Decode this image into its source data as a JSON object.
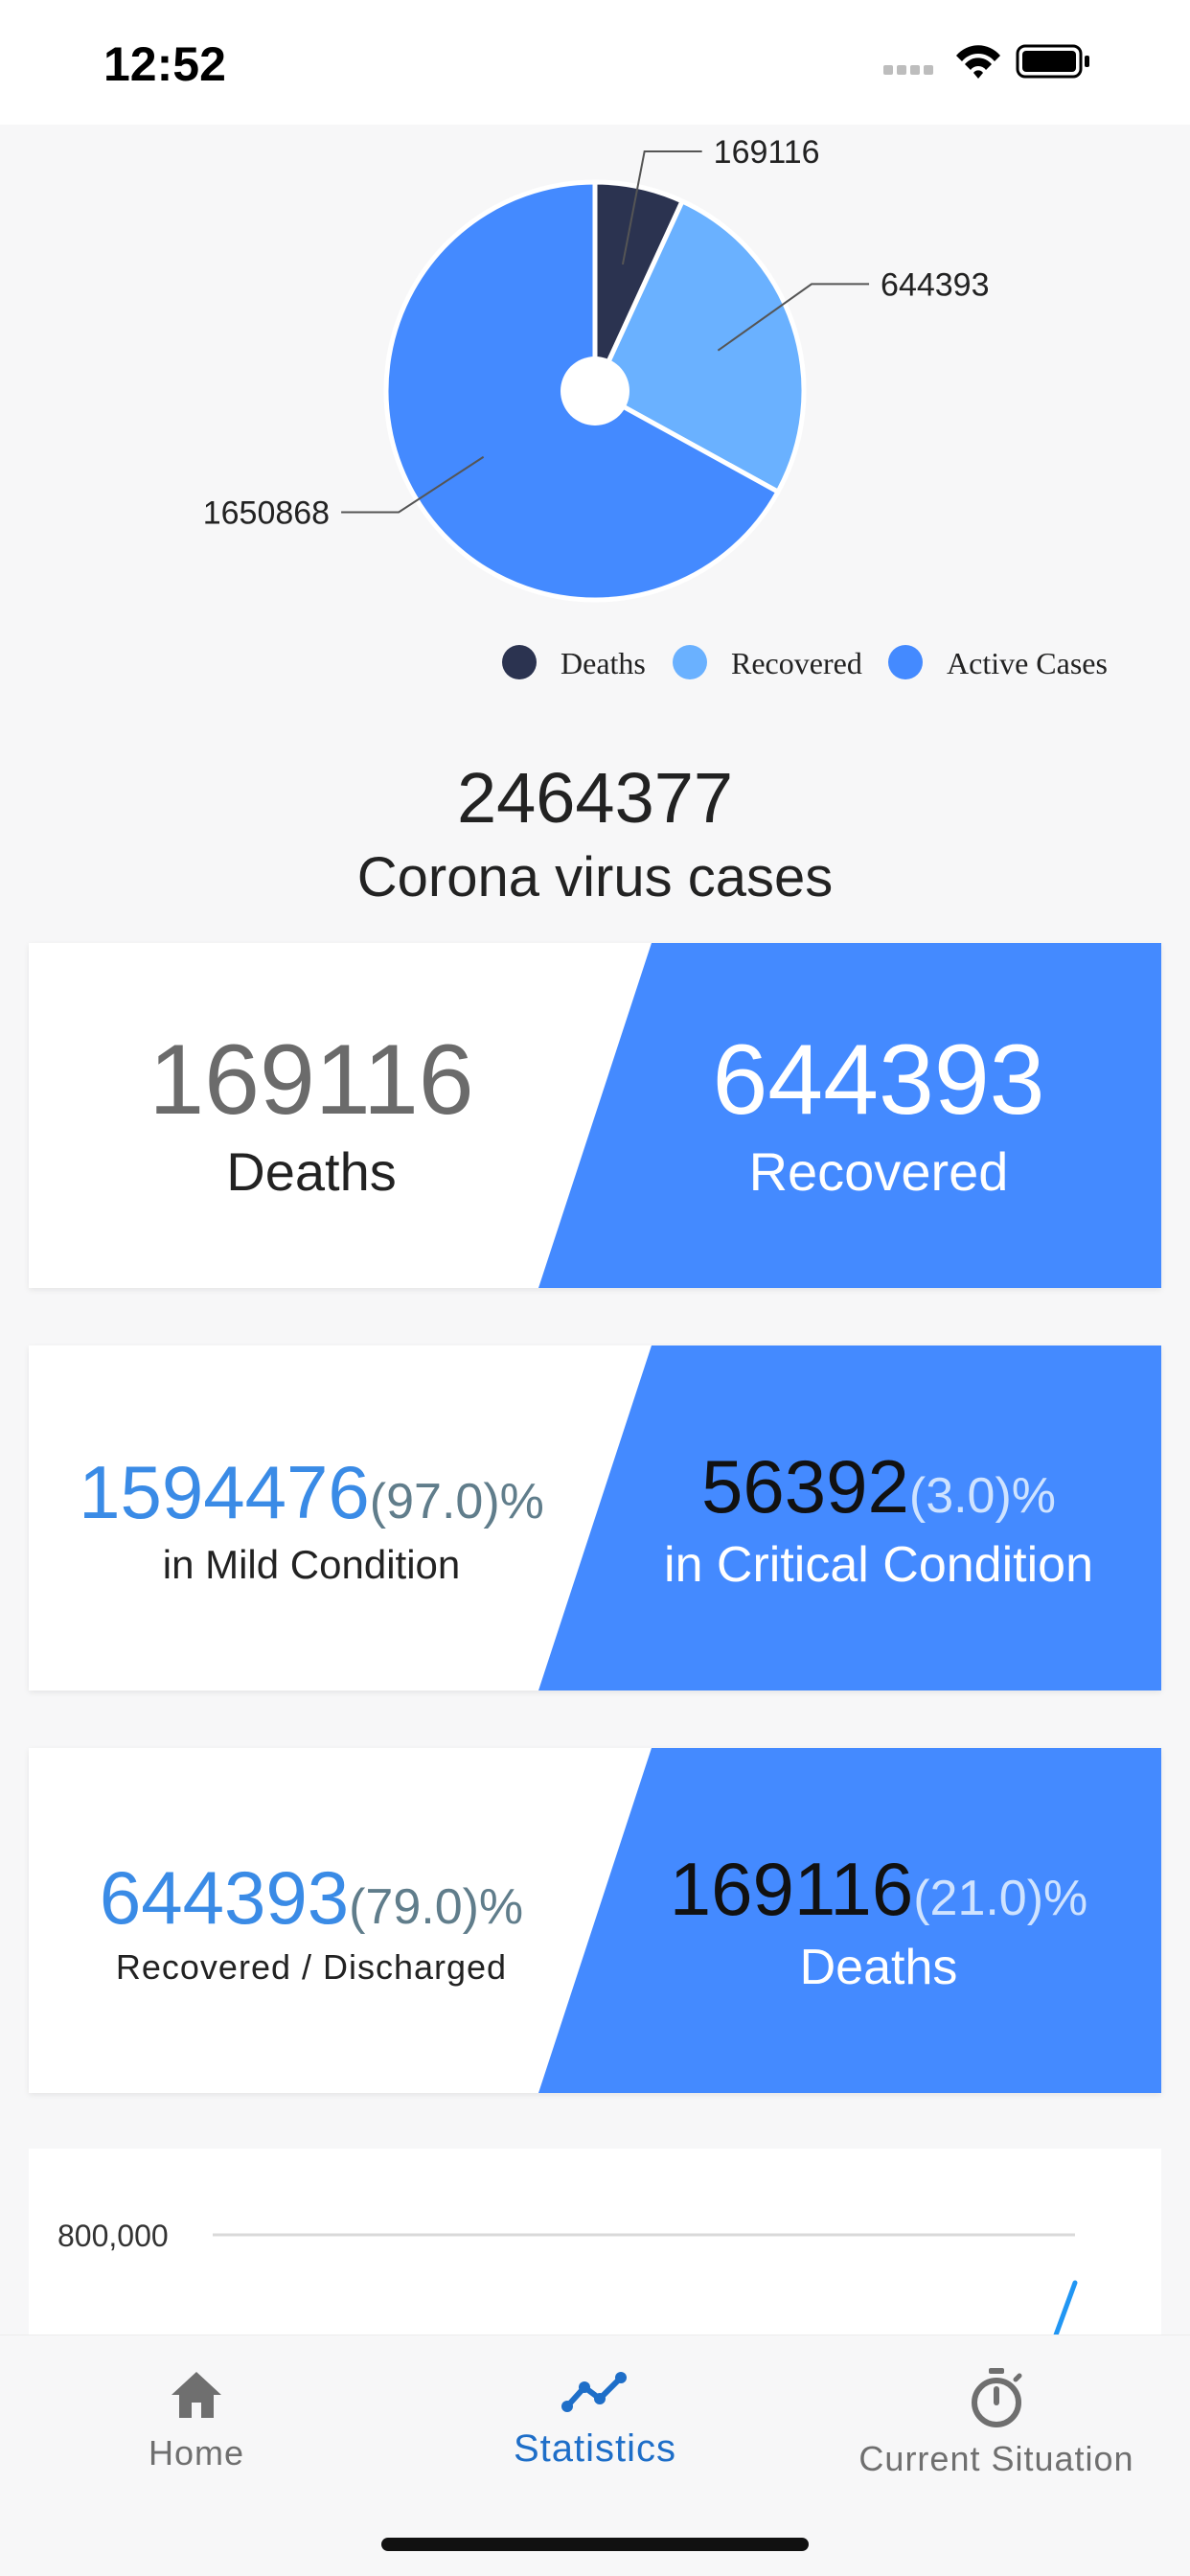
{
  "status_bar": {
    "time": "12:52"
  },
  "colors": {
    "deaths": "#2b3350",
    "recovered": "#6ab1ff",
    "active": "#448aff",
    "nav_active": "#1e6ec8",
    "nav_inactive": "#6f6f6f"
  },
  "chart_data": [
    {
      "type": "pie",
      "slices": [
        {
          "name": "Deaths",
          "value": 169116
        },
        {
          "name": "Recovered",
          "value": 644393
        },
        {
          "name": "Active Cases",
          "value": 1650868
        }
      ],
      "data_labels": [
        "169116",
        "644393",
        "1650868"
      ],
      "legend": [
        "Deaths",
        "Recovered",
        "Active Cases"
      ],
      "legend_position": "bottom-right"
    },
    {
      "type": "line",
      "y_tick_labels": [
        "800,000"
      ],
      "grid": true
    }
  ],
  "totals": {
    "number": "2464377",
    "label": "Corona virus cases"
  },
  "card_deaths_recovered": {
    "left_value": "169116",
    "left_label": "Deaths",
    "right_value": "644393",
    "right_label": "Recovered"
  },
  "card_condition": {
    "left_value": "1594476",
    "left_pct": "(97.0)%",
    "left_label": "in Mild Condition",
    "right_value": "56392",
    "right_pct": "(3.0)%",
    "right_label": "in Critical Condition"
  },
  "card_outcome": {
    "left_value": "644393",
    "left_pct": "(79.0)%",
    "left_label": "Recovered / Discharged",
    "right_value": "169116",
    "right_pct": "(21.0)%",
    "right_label": "Deaths"
  },
  "nav": {
    "items": [
      {
        "label": "Home",
        "icon": "home-icon",
        "active": false
      },
      {
        "label": "Statistics",
        "icon": "statistics-icon",
        "active": true
      },
      {
        "label": "Current Situation",
        "icon": "stopwatch-icon",
        "active": false
      }
    ]
  }
}
